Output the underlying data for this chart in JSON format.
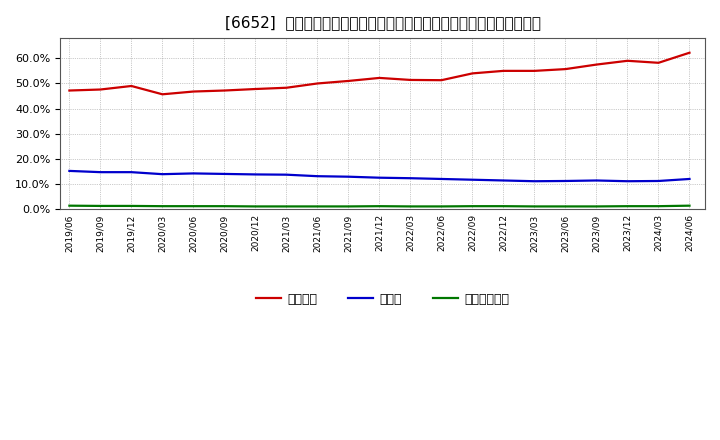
{
  "title": "[6652]  自己資本、のれん、繰延税金資産の総資産に対する比率の推移",
  "x_labels": [
    "2019/06",
    "2019/09",
    "2019/12",
    "2020/03",
    "2020/06",
    "2020/09",
    "2020/12",
    "2021/03",
    "2021/06",
    "2021/09",
    "2021/12",
    "2022/03",
    "2022/06",
    "2022/09",
    "2022/12",
    "2023/03",
    "2023/06",
    "2023/09",
    "2023/12",
    "2024/03",
    "2024/06"
  ],
  "jiko_shihon": [
    0.472,
    0.476,
    0.49,
    0.457,
    0.468,
    0.472,
    0.478,
    0.483,
    0.5,
    0.51,
    0.522,
    0.514,
    0.513,
    0.54,
    0.55,
    0.55,
    0.557,
    0.575,
    0.59,
    0.582,
    0.622
  ],
  "noren": [
    0.153,
    0.148,
    0.148,
    0.14,
    0.143,
    0.141,
    0.139,
    0.138,
    0.132,
    0.13,
    0.126,
    0.124,
    0.121,
    0.118,
    0.115,
    0.112,
    0.113,
    0.115,
    0.112,
    0.113,
    0.121
  ],
  "kurinobe": [
    0.015,
    0.014,
    0.014,
    0.013,
    0.013,
    0.013,
    0.012,
    0.012,
    0.012,
    0.012,
    0.013,
    0.012,
    0.012,
    0.013,
    0.013,
    0.012,
    0.012,
    0.012,
    0.013,
    0.013,
    0.015
  ],
  "color_jiko": "#cc0000",
  "color_noren": "#0000cc",
  "color_kurinobe": "#007700",
  "legend_labels": [
    "自己資本",
    "のれん",
    "繰延税金資産"
  ],
  "ylim": [
    0.0,
    0.68
  ],
  "yticks": [
    0.0,
    0.1,
    0.2,
    0.3,
    0.4,
    0.5,
    0.6
  ],
  "background_color": "#ffffff",
  "grid_color": "#999999",
  "line_width": 1.6,
  "title_fontsize": 11
}
